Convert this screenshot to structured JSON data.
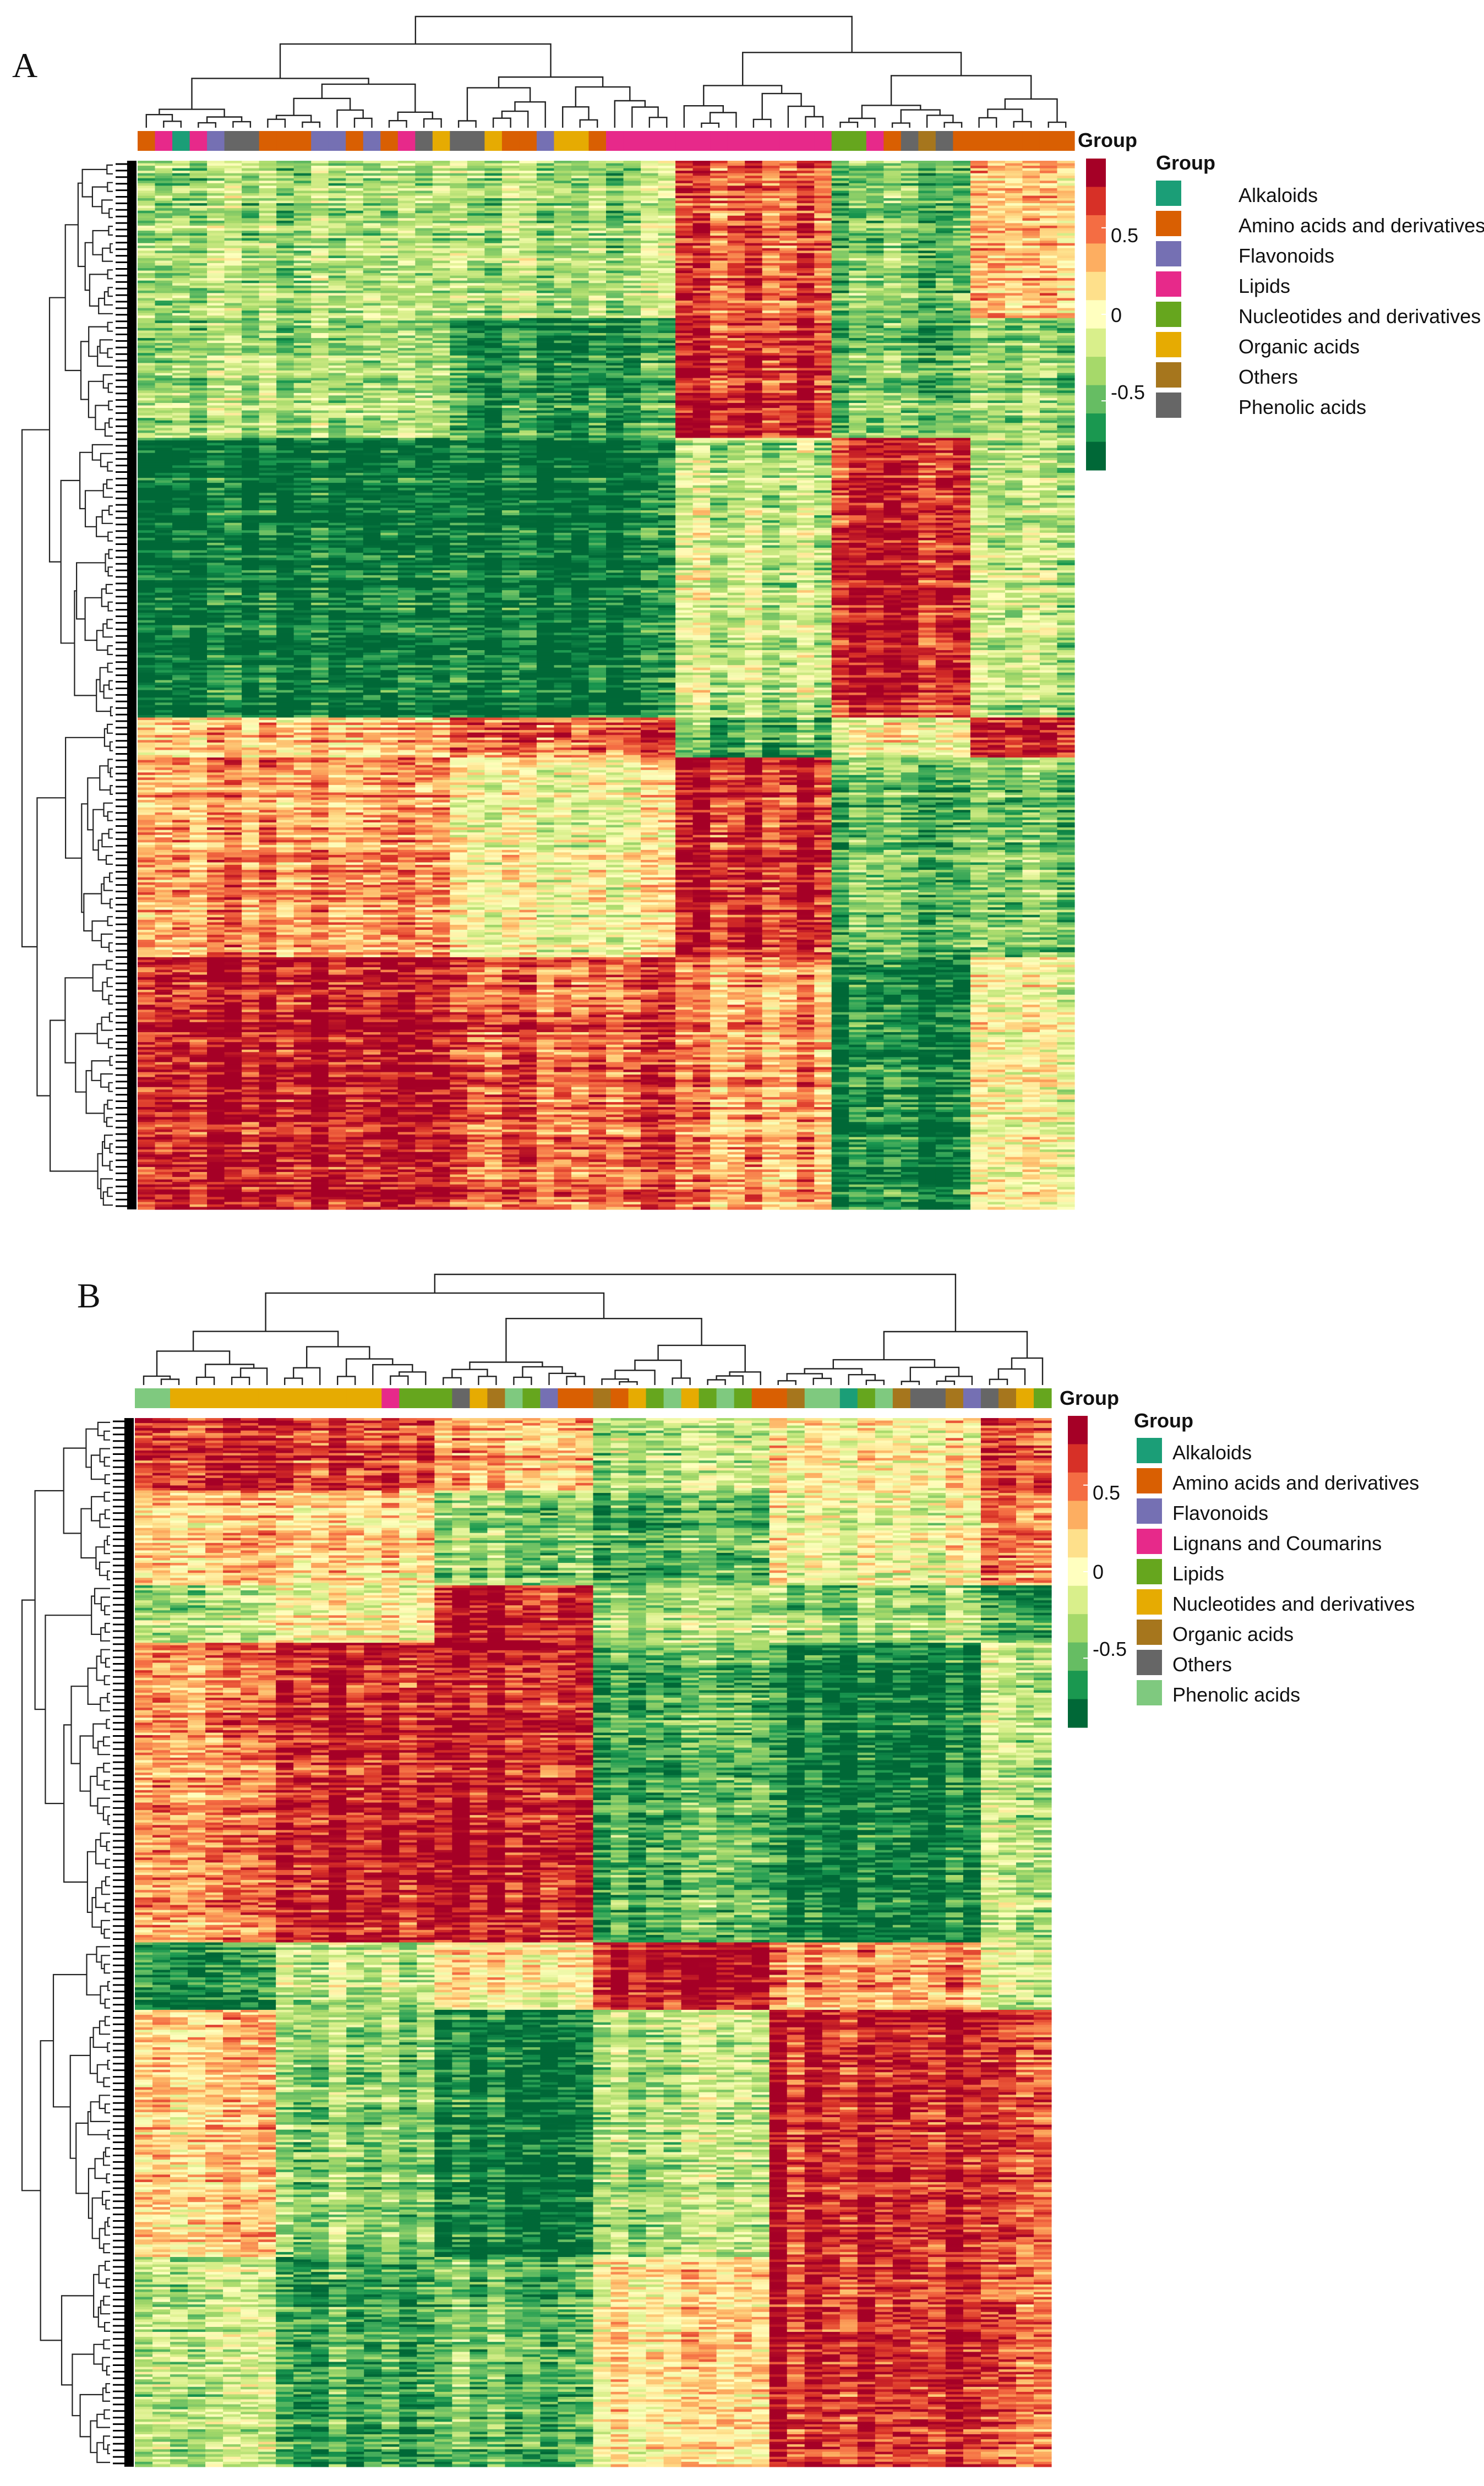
{
  "colors": {
    "scale": [
      "#006837",
      "#1a9850",
      "#66bd63",
      "#a6d96a",
      "#d9ef8b",
      "#ffffbf",
      "#fee08b",
      "#fdae61",
      "#f46d43",
      "#d73027",
      "#a50026"
    ],
    "dendrogram": "#222222",
    "leaf_marks": "#000000"
  },
  "chart_data": [
    {
      "type": "heatmap",
      "panel": "A",
      "title": "",
      "n_columns": 54,
      "n_rows": 420,
      "annotation_label": "Group",
      "legend_title": "Group",
      "scale_range": [
        -0.9,
        0.9
      ],
      "scale_ticks": [
        0.5,
        0,
        -0.5
      ],
      "scale_tick_labels": [
        "0.5",
        "0",
        "-0.5"
      ],
      "categories": [
        {
          "name": "Alkaloids",
          "color": "#1b9e77"
        },
        {
          "name": "Amino acids and derivatives",
          "color": "#d95f02"
        },
        {
          "name": "Flavonoids",
          "color": "#7570b3"
        },
        {
          "name": "Lipids",
          "color": "#e7298a"
        },
        {
          "name": "Nucleotides and derivatives",
          "color": "#66a61e"
        },
        {
          "name": "Organic acids",
          "color": "#e6ab02"
        },
        {
          "name": "Others",
          "color": "#a6761d"
        },
        {
          "name": "Phenolic acids",
          "color": "#666666"
        }
      ],
      "column_group_index": [
        1,
        3,
        0,
        3,
        2,
        7,
        7,
        1,
        1,
        1,
        2,
        2,
        1,
        2,
        1,
        3,
        7,
        5,
        7,
        7,
        5,
        1,
        1,
        2,
        5,
        5,
        1,
        3,
        3,
        3,
        3,
        3,
        3,
        3,
        3,
        3,
        3,
        3,
        3,
        3,
        4,
        4,
        3,
        1,
        7,
        6,
        7,
        1,
        1,
        1,
        1,
        1,
        1,
        1
      ],
      "row_clusters": [
        {
          "name": "C1",
          "end": 0.15,
          "column_levels": [
            -0.3,
            -0.3,
            0.6,
            -0.55,
            0.3
          ]
        },
        {
          "name": "C2",
          "end": 0.265,
          "column_levels": [
            -0.3,
            -0.7,
            0.75,
            -0.55,
            -0.35
          ]
        },
        {
          "name": "C3",
          "end": 0.53,
          "column_levels": [
            -0.85,
            -0.85,
            -0.2,
            0.75,
            -0.2
          ]
        },
        {
          "name": "C4",
          "end": 0.57,
          "column_levels": [
            0.3,
            0.6,
            -0.6,
            -0.05,
            0.85
          ]
        },
        {
          "name": "C5",
          "end": 0.76,
          "column_levels": [
            0.4,
            0.0,
            0.75,
            -0.6,
            -0.45
          ]
        },
        {
          "name": "C6",
          "end": 1.0,
          "column_levels": [
            0.85,
            0.6,
            0.4,
            -0.85,
            0.05
          ]
        }
      ],
      "column_blocks": [
        18,
        31,
        40,
        48,
        54
      ]
    },
    {
      "type": "heatmap",
      "panel": "B",
      "title": "",
      "n_columns": 52,
      "n_rows": 420,
      "annotation_label": "Group",
      "legend_title": "Group",
      "scale_range": [
        -0.9,
        0.9
      ],
      "scale_ticks": [
        0.5,
        0,
        -0.5
      ],
      "scale_tick_labels": [
        "0.5",
        "0",
        "-0.5"
      ],
      "categories": [
        {
          "name": "Alkaloids",
          "color": "#1b9e77"
        },
        {
          "name": "Amino acids and derivatives",
          "color": "#d95f02"
        },
        {
          "name": "Flavonoids",
          "color": "#7570b3"
        },
        {
          "name": "Lignans and Coumarins",
          "color": "#e7298a"
        },
        {
          "name": "Lipids",
          "color": "#66a61e"
        },
        {
          "name": "Nucleotides and derivatives",
          "color": "#e6ab02"
        },
        {
          "name": "Organic acids",
          "color": "#a6761d"
        },
        {
          "name": "Others",
          "color": "#666666"
        },
        {
          "name": "Phenolic acids",
          "color": "#7fc97f"
        }
      ],
      "column_group_index": [
        8,
        8,
        5,
        5,
        5,
        5,
        5,
        5,
        5,
        5,
        5,
        5,
        5,
        5,
        3,
        4,
        4,
        4,
        7,
        5,
        6,
        8,
        4,
        2,
        1,
        1,
        6,
        1,
        5,
        4,
        8,
        5,
        4,
        8,
        4,
        1,
        1,
        6,
        8,
        8,
        0,
        4,
        8,
        6,
        7,
        7,
        6,
        2,
        7,
        6,
        5,
        4
      ],
      "row_clusters": [
        {
          "name": "C1",
          "end": 0.07,
          "column_levels": [
            0.8,
            0.7,
            0.3,
            -0.3,
            0.1,
            0.6
          ]
        },
        {
          "name": "C2",
          "end": 0.16,
          "column_levels": [
            0.3,
            0.2,
            -0.4,
            -0.6,
            0.0,
            0.4
          ]
        },
        {
          "name": "C3",
          "end": 0.215,
          "column_levels": [
            -0.2,
            0.1,
            0.85,
            -0.3,
            -0.3,
            -0.7
          ]
        },
        {
          "name": "C4",
          "end": 0.5,
          "column_levels": [
            0.5,
            0.8,
            0.8,
            -0.6,
            -0.8,
            -0.3
          ]
        },
        {
          "name": "C5",
          "end": 0.565,
          "column_levels": [
            -0.7,
            -0.2,
            0.1,
            0.85,
            0.4,
            -0.2
          ]
        },
        {
          "name": "C6",
          "end": 0.8,
          "column_levels": [
            0.3,
            -0.4,
            -0.85,
            -0.3,
            0.8,
            0.6
          ]
        },
        {
          "name": "C7",
          "end": 1.0,
          "column_levels": [
            -0.2,
            -0.65,
            -0.55,
            0.1,
            0.75,
            0.5
          ]
        }
      ],
      "column_blocks": [
        8,
        17,
        26,
        36,
        48,
        52
      ]
    }
  ],
  "panel_letters": [
    "A",
    "B"
  ]
}
